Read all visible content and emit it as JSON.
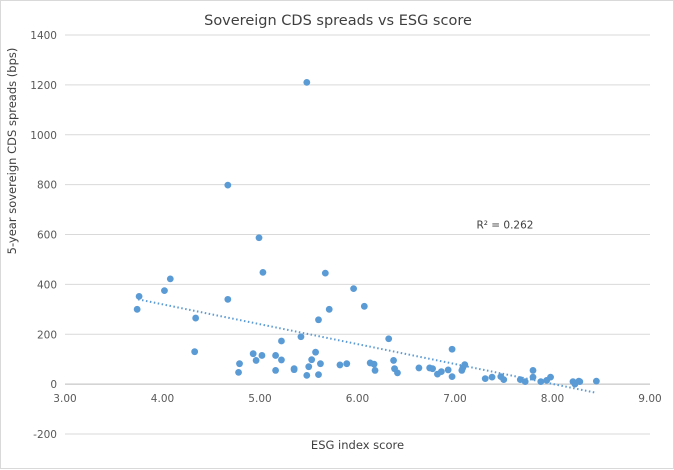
{
  "chart_data": {
    "type": "scatter",
    "title": "Sovereign CDS spreads vs ESG score",
    "xlabel": "ESG index score",
    "ylabel": "5-year sovereign CDS spreads  (bps)",
    "xlim": [
      3.0,
      9.0
    ],
    "ylim": [
      -200,
      1400
    ],
    "x_ticks": [
      "3.00",
      "4.00",
      "5.00",
      "6.00",
      "7.00",
      "8.00",
      "9.00"
    ],
    "y_ticks": [
      "-200",
      "0",
      "200",
      "400",
      "600",
      "800",
      "1000",
      "1200",
      "1400"
    ],
    "grid": "horizontal",
    "legend": "none",
    "trendline": {
      "type": "linear",
      "label": "R² = 0.262",
      "x_start": 3.75,
      "y_start": 340,
      "x_end": 8.45,
      "y_end": -35
    },
    "marker_color": "#5b9bd5",
    "series": [
      {
        "points": [
          [
            3.74,
            300
          ],
          [
            3.76,
            352
          ],
          [
            4.02,
            375
          ],
          [
            4.08,
            422
          ],
          [
            4.34,
            265
          ],
          [
            4.33,
            130
          ],
          [
            4.67,
            798
          ],
          [
            4.67,
            340
          ],
          [
            4.78,
            47
          ],
          [
            4.79,
            82
          ],
          [
            4.93,
            122
          ],
          [
            4.96,
            95
          ],
          [
            4.99,
            587
          ],
          [
            5.03,
            448
          ],
          [
            5.02,
            115
          ],
          [
            5.16,
            115
          ],
          [
            5.16,
            55
          ],
          [
            5.22,
            97
          ],
          [
            5.22,
            173
          ],
          [
            5.35,
            62
          ],
          [
            5.35,
            58
          ],
          [
            5.42,
            190
          ],
          [
            5.48,
            1210
          ],
          [
            5.48,
            35
          ],
          [
            5.5,
            70
          ],
          [
            5.53,
            98
          ],
          [
            5.57,
            128
          ],
          [
            5.6,
            258
          ],
          [
            5.6,
            38
          ],
          [
            5.62,
            82
          ],
          [
            5.67,
            445
          ],
          [
            5.71,
            300
          ],
          [
            5.82,
            77
          ],
          [
            5.89,
            82
          ],
          [
            5.96,
            383
          ],
          [
            6.07,
            312
          ],
          [
            6.13,
            85
          ],
          [
            6.17,
            80
          ],
          [
            6.18,
            55
          ],
          [
            6.32,
            182
          ],
          [
            6.37,
            95
          ],
          [
            6.38,
            62
          ],
          [
            6.41,
            45
          ],
          [
            6.63,
            65
          ],
          [
            6.74,
            65
          ],
          [
            6.77,
            62
          ],
          [
            6.82,
            40
          ],
          [
            6.86,
            50
          ],
          [
            6.93,
            57
          ],
          [
            6.97,
            140
          ],
          [
            6.97,
            30
          ],
          [
            7.07,
            55
          ],
          [
            7.08,
            65
          ],
          [
            7.1,
            78
          ],
          [
            7.31,
            22
          ],
          [
            7.38,
            28
          ],
          [
            7.47,
            30
          ],
          [
            7.5,
            18
          ],
          [
            7.67,
            18
          ],
          [
            7.72,
            10
          ],
          [
            7.8,
            55
          ],
          [
            7.8,
            28
          ],
          [
            7.88,
            10
          ],
          [
            7.94,
            15
          ],
          [
            7.98,
            28
          ],
          [
            8.21,
            10
          ],
          [
            8.23,
            0
          ],
          [
            8.27,
            12
          ],
          [
            8.28,
            10
          ],
          [
            8.45,
            12
          ]
        ]
      }
    ]
  }
}
